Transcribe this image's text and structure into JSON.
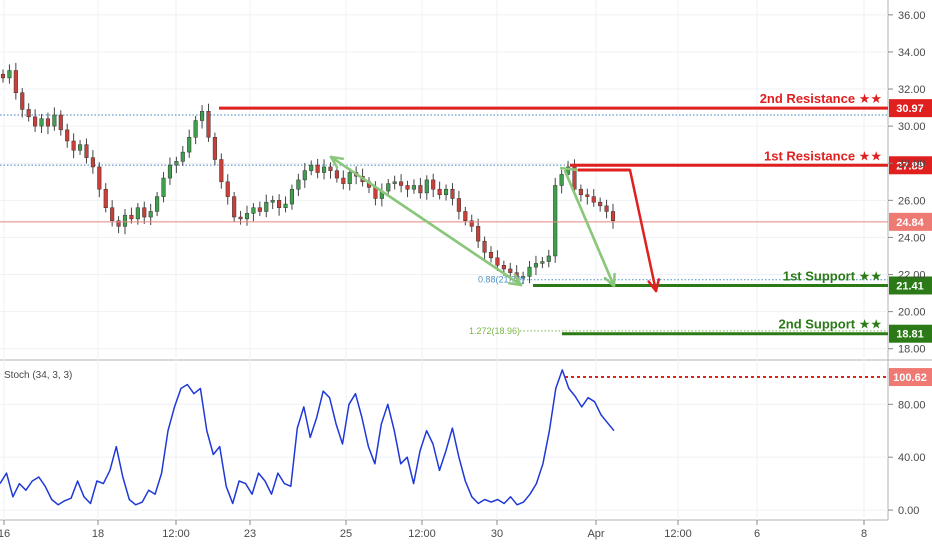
{
  "chart_data": [
    {
      "type": "candlestick",
      "panel": "price",
      "ylim": [
        17.5,
        36.8
      ],
      "y_ticks": [
        "36.00",
        "34.00",
        "32.00",
        "30.00",
        "28.00",
        "26.00",
        "24.00",
        "22.00",
        "20.00",
        "18.00"
      ],
      "x_ticks": [
        "16",
        "18",
        "12:00",
        "23",
        "25",
        "12:00",
        "30",
        "Apr",
        "12:00",
        "6",
        "8"
      ],
      "current_price": 24.84,
      "current_price_label": "24.84",
      "levels": [
        {
          "name": "2nd Resistance ★★",
          "value": 30.97,
          "label": "30.97",
          "color": "#e01f1f"
        },
        {
          "name": "1st Resistance ★★",
          "value": 27.89,
          "label": "27.89",
          "color": "#e01f1f"
        },
        {
          "name": "1st Support ★★",
          "value": 21.41,
          "label": "21.41",
          "color": "#2b7a17"
        },
        {
          "name": "2nd Support ★★",
          "value": 18.81,
          "label": "18.81",
          "color": "#2b7a17"
        }
      ],
      "dotted_levels": [
        30.6,
        27.9,
        21.72,
        18.96
      ],
      "fib_labels": [
        {
          "text": "0.88(21.72)",
          "value": 21.72,
          "color": "#4a90c8"
        },
        {
          "text": "1.272(18.96)",
          "value": 18.96,
          "color": "#7ab648"
        }
      ],
      "series": [
        {
          "name": "price",
          "values": [
            32.6,
            33.0,
            31.8,
            30.9,
            30.5,
            30.0,
            30.4,
            30.0,
            30.6,
            29.8,
            29.2,
            28.7,
            29.0,
            28.3,
            27.8,
            26.6,
            25.6,
            24.9,
            24.6,
            25.2,
            25.0,
            25.6,
            25.1,
            25.4,
            26.2,
            27.2,
            27.9,
            28.1,
            28.6,
            29.4,
            30.3,
            30.8,
            29.4,
            28.2,
            27.0,
            26.2,
            25.1,
            25.0,
            25.3,
            25.6,
            25.4,
            25.9,
            26.0,
            25.6,
            25.8,
            26.6,
            27.1,
            27.6,
            27.9,
            27.5,
            27.8,
            27.6,
            27.2,
            26.9,
            27.5,
            27.3,
            27.0,
            26.7,
            26.1,
            26.5,
            26.9,
            27.0,
            26.8,
            26.6,
            26.8,
            26.4,
            27.1,
            26.6,
            26.3,
            26.6,
            26.1,
            25.4,
            24.9,
            24.6,
            23.8,
            23.2,
            22.9,
            22.5,
            22.3,
            22.1,
            21.8,
            21.9,
            22.4,
            22.6,
            22.7,
            23.0,
            26.8,
            27.4,
            27.8,
            26.6,
            26.3,
            26.2,
            25.9,
            25.7,
            25.4,
            24.9
          ]
        }
      ]
    },
    {
      "type": "line",
      "panel": "stoch",
      "title": "Stoch (34, 3, 3)",
      "ylim": [
        -6,
        112
      ],
      "y_ticks": [
        "80.00",
        "40.00",
        "0.00"
      ],
      "current_value": 100.62,
      "current_value_label": "100.62",
      "series": [
        {
          "name": "Stoch",
          "values": [
            20,
            28,
            10,
            20,
            15,
            22,
            25,
            18,
            8,
            4,
            7,
            9,
            22,
            10,
            5,
            22,
            20,
            30,
            48,
            25,
            8,
            4,
            6,
            15,
            12,
            28,
            60,
            78,
            92,
            95,
            88,
            92,
            60,
            42,
            48,
            18,
            5,
            22,
            20,
            12,
            28,
            22,
            12,
            28,
            20,
            18,
            62,
            78,
            55,
            70,
            90,
            85,
            65,
            50,
            80,
            88,
            70,
            48,
            35,
            65,
            80,
            60,
            35,
            40,
            20,
            45,
            60,
            50,
            30,
            45,
            62,
            40,
            22,
            10,
            5,
            8,
            6,
            8,
            5,
            10,
            4,
            6,
            12,
            20,
            35,
            60,
            92,
            106,
            92,
            86,
            78,
            85,
            82,
            72,
            66,
            60
          ]
        }
      ]
    }
  ]
}
